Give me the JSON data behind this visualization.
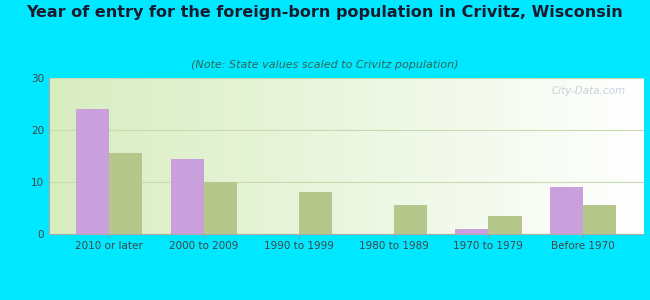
{
  "title": "Year of entry for the foreign-born population in Crivitz, Wisconsin",
  "subtitle": "(Note: State values scaled to Crivitz population)",
  "categories": [
    "2010 or later",
    "2000 to 2009",
    "1990 to 1999",
    "1980 to 1989",
    "1970 to 1979",
    "Before 1970"
  ],
  "crivitz_values": [
    24,
    14.5,
    0,
    0,
    1,
    9
  ],
  "wisconsin_values": [
    15.5,
    10,
    8,
    5.5,
    3.5,
    5.5
  ],
  "crivitz_color": "#c9a0dc",
  "wisconsin_color": "#b5c78a",
  "bar_width": 0.35,
  "ylim": [
    0,
    30
  ],
  "yticks": [
    0,
    10,
    20,
    30
  ],
  "background_outer": "#00e8ff",
  "title_fontsize": 11.5,
  "subtitle_fontsize": 8,
  "tick_fontsize": 7.5,
  "legend_fontsize": 9,
  "watermark": "City-Data.com",
  "grid_color": "#c8dbb0",
  "axis_line_color": "#aaaaaa",
  "title_color": "#1a1a2e",
  "subtitle_color": "#336655"
}
